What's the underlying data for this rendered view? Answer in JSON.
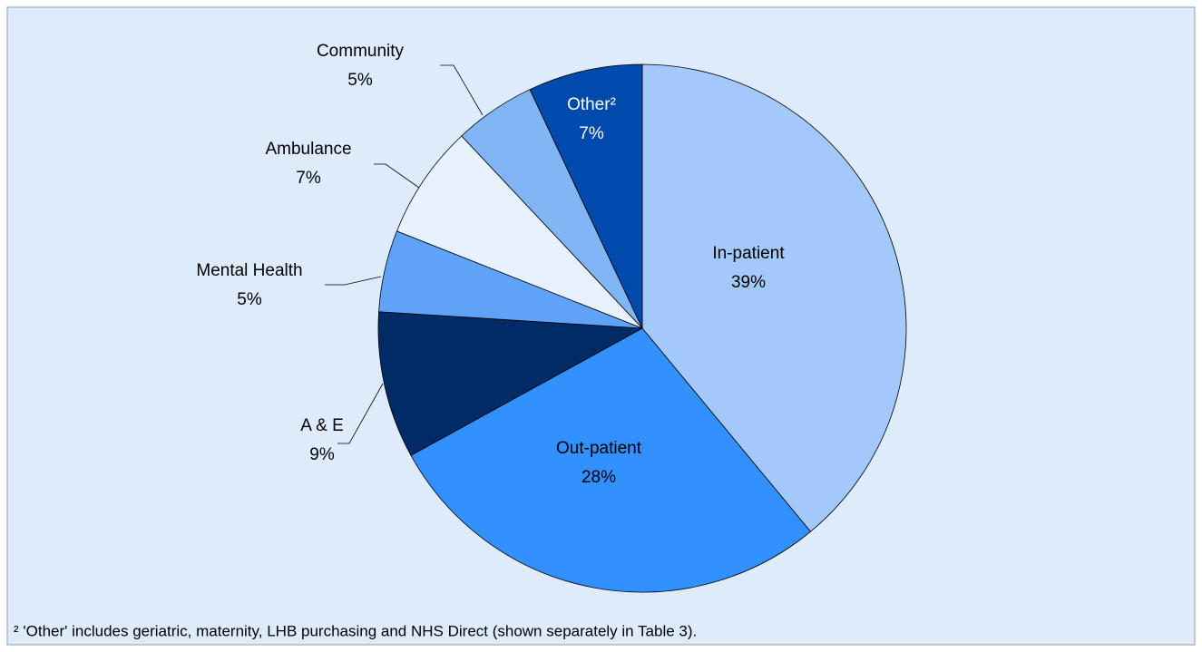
{
  "chart_data": {
    "type": "pie",
    "categories": [
      "In-patient",
      "Out-patient",
      "A & E",
      "Mental Health",
      "Ambulance",
      "Community",
      "Other²"
    ],
    "values": [
      39,
      28,
      9,
      5,
      7,
      5,
      7
    ],
    "value_labels": [
      "39%",
      "28%",
      "9%",
      "5%",
      "7%",
      "5%",
      "7%"
    ],
    "colors": [
      "#a3c8fa",
      "#3390ff",
      "#002b66",
      "#5ea3f8",
      "#e8f2ff",
      "#80b6f5",
      "#0049ad"
    ],
    "footnote": "² 'Other' includes geriatric, maternity, LHB purchasing and NHS Direct (shown separately in Table 3)."
  }
}
